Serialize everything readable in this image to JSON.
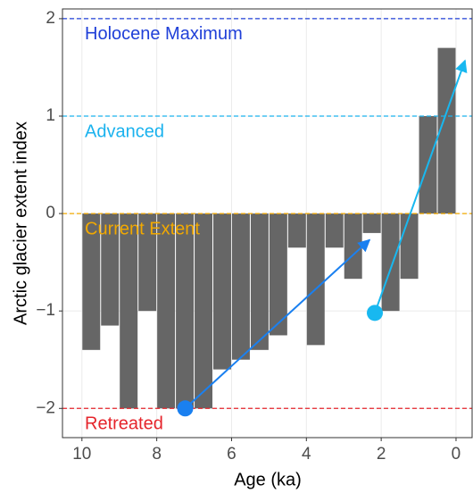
{
  "chart_data": {
    "type": "bar",
    "x_label": "Age (ka)",
    "y_label": "Arctic glacier extent index",
    "x": [
      9.75,
      9.25,
      8.75,
      8.25,
      7.75,
      7.25,
      6.75,
      6.25,
      5.75,
      5.25,
      4.75,
      4.25,
      3.75,
      3.25,
      2.75,
      2.25,
      1.75,
      1.25,
      0.75,
      0.25
    ],
    "values": [
      -1.4,
      -1.15,
      -2.0,
      -1.0,
      -2.0,
      -2.0,
      -2.0,
      -1.6,
      -1.5,
      -1.4,
      -1.25,
      -0.35,
      -1.35,
      -0.35,
      -0.67,
      -0.2,
      -1.0,
      -0.67,
      1.0,
      1.7
    ],
    "color": "#666666",
    "xlim": [
      10.52,
      -0.43
    ],
    "ylim": [
      -2.3,
      2.1
    ],
    "xticks": [
      10,
      8,
      6,
      4,
      2,
      0
    ],
    "yticks": [
      {
        "value": -2,
        "label": "−2"
      },
      {
        "value": -1,
        "label": "−1"
      },
      0,
      1,
      2
    ],
    "grid": true,
    "reference_lines": [
      {
        "value": 2,
        "label": "Holocene Maximum",
        "color": "#1f3fd8"
      },
      {
        "value": 1,
        "label": "Advanced",
        "color": "#1ab2ee"
      },
      {
        "value": 0,
        "label": "Current Extent",
        "color": "#f2a900"
      },
      {
        "value": -2,
        "label": "Retreated",
        "color": "#e5242b"
      }
    ],
    "arrows": [
      {
        "x": [
          7.24,
          2.31
        ],
        "y": [
          -2.0,
          -0.27
        ],
        "color": "#1a80f0"
      },
      {
        "x": [
          2.17,
          -0.24
        ],
        "y": [
          -1.02,
          1.57
        ],
        "color": "#18b8f0"
      }
    ]
  }
}
